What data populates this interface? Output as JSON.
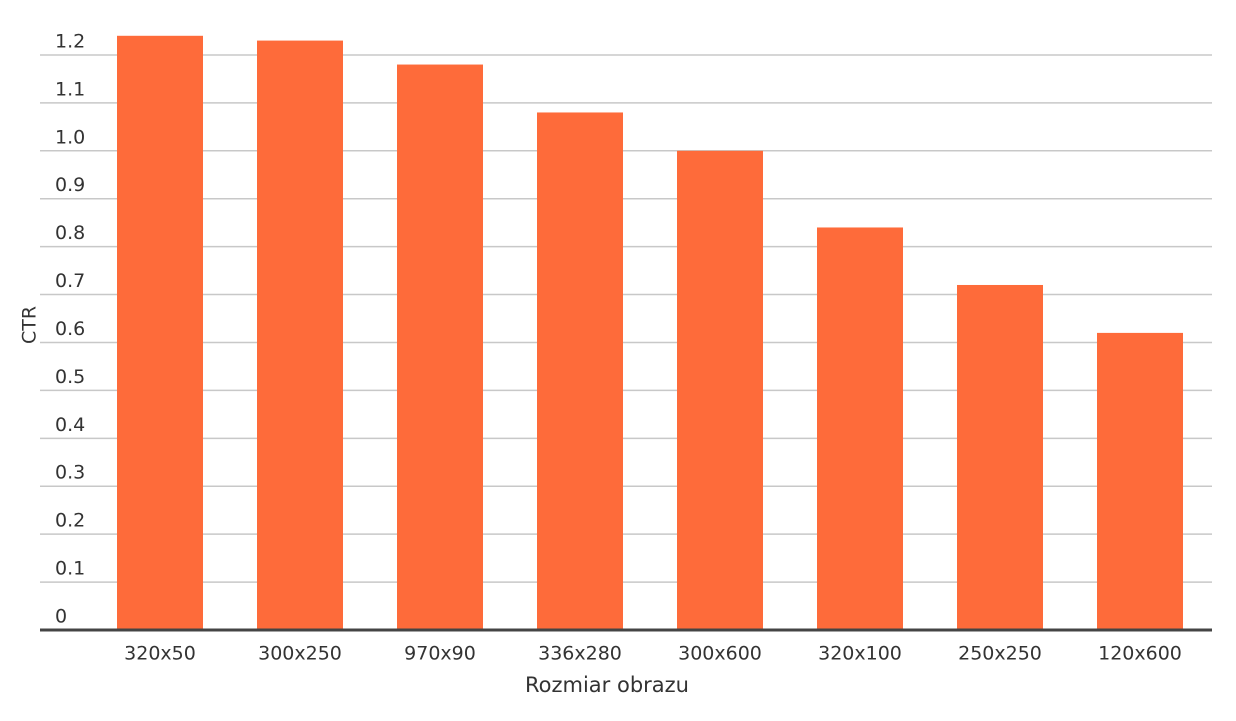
{
  "chart_data": {
    "type": "bar",
    "x_label": "Rozmiar obrazu",
    "y_label": "CTR",
    "categories": [
      "320x50",
      "300x250",
      "970x90",
      "336x280",
      "300x600",
      "320x100",
      "250x250",
      "120x600"
    ],
    "values": [
      1.24,
      1.23,
      1.18,
      1.08,
      1.0,
      0.84,
      0.72,
      0.62
    ],
    "color": "#fe6b3a",
    "ylim": [
      0,
      1.25
    ],
    "yticks": [
      0,
      0.1,
      0.2,
      0.3,
      0.4,
      0.5,
      0.6,
      0.7,
      0.8,
      0.9,
      {
        "value": 1,
        "label": "1.0"
      },
      1.1,
      1.2
    ],
    "grid": true
  }
}
